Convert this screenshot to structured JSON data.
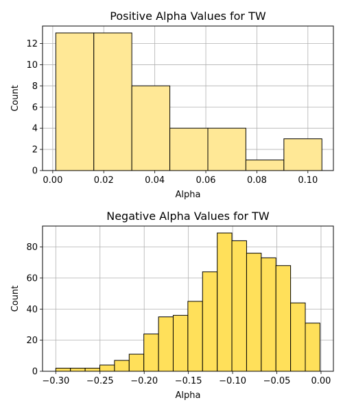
{
  "chart_data": [
    {
      "type": "bar",
      "title": "Positive Alpha Values for TW",
      "xlabel": "Alpha",
      "ylabel": "Count",
      "bin_edges": [
        0.0012,
        0.0161,
        0.031,
        0.0459,
        0.0608,
        0.0757,
        0.0906,
        0.1055
      ],
      "values": [
        13,
        13,
        8,
        4,
        4,
        1,
        3
      ],
      "xlim": [
        -0.004,
        0.11
      ],
      "ylim": [
        0,
        13.65
      ],
      "xticks": [
        0.0,
        0.02,
        0.04,
        0.06,
        0.08,
        0.1
      ],
      "xtick_labels": [
        "0.00",
        "0.02",
        "0.04",
        "0.06",
        "0.08",
        "0.10"
      ],
      "yticks": [
        0,
        2,
        4,
        6,
        8,
        10,
        12
      ],
      "ytick_labels": [
        "0",
        "2",
        "4",
        "6",
        "8",
        "10",
        "12"
      ],
      "grid": true,
      "bar_color": "#ffe896",
      "edge_color": "#000000"
    },
    {
      "type": "bar",
      "title": "Negative Alpha Values for TW",
      "xlabel": "Alpha",
      "ylabel": "Count",
      "bin_edges": [
        -0.3,
        -0.2834,
        -0.2668,
        -0.2502,
        -0.2336,
        -0.217,
        -0.2004,
        -0.1838,
        -0.1672,
        -0.1506,
        -0.134,
        -0.1174,
        -0.1008,
        -0.0842,
        -0.0676,
        -0.051,
        -0.0344,
        -0.0178,
        -0.0012
      ],
      "values": [
        2,
        2,
        2,
        4,
        7,
        11,
        24,
        35,
        36,
        45,
        64,
        89,
        84,
        76,
        73,
        68,
        44,
        31
      ],
      "xlim": [
        -0.315,
        0.014
      ],
      "ylim": [
        0,
        93.45
      ],
      "xticks": [
        -0.3,
        -0.25,
        -0.2,
        -0.15,
        -0.1,
        -0.05,
        0.0
      ],
      "xtick_labels": [
        "−0.30",
        "−0.25",
        "−0.20",
        "−0.15",
        "−0.10",
        "−0.05",
        "0.00"
      ],
      "yticks": [
        0,
        20,
        40,
        60,
        80
      ],
      "ytick_labels": [
        "0",
        "20",
        "40",
        "60",
        "80"
      ],
      "grid": true,
      "bar_color": "#ffe05a",
      "edge_color": "#000000"
    }
  ]
}
